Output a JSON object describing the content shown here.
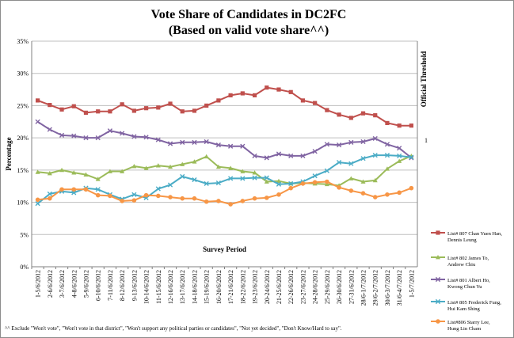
{
  "chart_data": {
    "type": "line",
    "title": "Vote Share of Candidates in DC2FC",
    "subtitle": "(Based on valid vote share^^)",
    "xlabel": "Survey Period",
    "ylabel": "Percentage",
    "y2label": "Official Threshold",
    "y2tick": "1",
    "ylim": [
      0,
      35
    ],
    "yticks": [
      "0%",
      "5%",
      "10%",
      "15%",
      "20%",
      "25%",
      "30%",
      "35%"
    ],
    "grid": true,
    "legend_position": "right",
    "footnote": "^^ Exclude \"Won't vote\", \"Won't vote in that district\", \"Won't support any political parties or candidates\", \"Not yet decided\", \"Don't Know/Hard to say\".",
    "categories": [
      "1-5/6/2012",
      "2-6/6/2012",
      "3-7/6/2012",
      "4-8/6/2012",
      "5-9/6/2012",
      "6-10/6/2012",
      "7-11/6/2012",
      "8-12/6/2012",
      "9-13/6/2012",
      "10-14/6/2012",
      "11-15/6/2012",
      "12-16/6/2012",
      "13-17/6/2012",
      "14-18/6/2012",
      "15-19/6/2012",
      "16-20/6/2012",
      "17-21/6/2012",
      "18-22/6/2012",
      "19-23/6/2012",
      "20-24/6/2012",
      "21-25/6/2012",
      "22-26/6/2012",
      "23-27/6/2012",
      "24-28/6/2012",
      "25-29/6/2012",
      "26-30/6/2012",
      "27-31/6/2012",
      "28/6-1/7/2012",
      "29/6-2/7/2012",
      "30/6-3/7/2012",
      "31/6-4/7/2012",
      "1-5/7/2012"
    ],
    "series": [
      {
        "name": "List# 807 Chan Yuen Han, Dennis Leung",
        "color": "#c0504d",
        "marker": "square",
        "values": [
          25.8,
          25.1,
          24.4,
          24.9,
          23.9,
          24.1,
          24.1,
          25.2,
          24.2,
          24.6,
          24.7,
          25.3,
          24.1,
          24.2,
          25.0,
          25.8,
          26.6,
          26.9,
          26.6,
          27.8,
          27.5,
          27.1,
          25.8,
          25.4,
          24.3,
          23.6,
          23.1,
          23.8,
          23.5,
          22.3,
          21.9,
          21.9
        ]
      },
      {
        "name": "List# 802 James To, Andrew Chiu",
        "color": "#9bbb59",
        "marker": "triangle",
        "values": [
          14.7,
          14.5,
          15.0,
          14.6,
          14.3,
          13.6,
          14.8,
          14.8,
          15.6,
          15.3,
          15.7,
          15.5,
          15.9,
          16.3,
          17.1,
          15.5,
          15.3,
          14.8,
          14.6,
          13.2,
          13.3,
          12.9,
          13.0,
          12.9,
          12.8,
          12.6,
          13.7,
          13.2,
          13.4,
          15.2,
          16.4,
          17.2
        ]
      },
      {
        "name": "List# 801 Albert Ho, Kwong Chun Yu",
        "color": "#8064a2",
        "marker": "x",
        "values": [
          22.5,
          21.3,
          20.4,
          20.3,
          20.0,
          20.0,
          21.1,
          20.7,
          20.2,
          20.1,
          19.7,
          19.1,
          19.3,
          19.3,
          19.4,
          18.9,
          18.7,
          18.7,
          17.2,
          16.9,
          17.5,
          17.2,
          17.2,
          17.9,
          19.0,
          18.9,
          19.3,
          19.4,
          19.9,
          19.0,
          18.4,
          16.9
        ]
      },
      {
        "name": "List# 805 Frederick Fung, Hui Kam Shing",
        "color": "#4bacc6",
        "marker": "x",
        "values": [
          9.8,
          11.3,
          11.7,
          11.5,
          12.2,
          12.0,
          11.2,
          10.5,
          11.2,
          10.7,
          12.1,
          12.7,
          14.0,
          13.5,
          12.9,
          13.0,
          13.7,
          13.7,
          13.8,
          13.8,
          12.8,
          12.9,
          13.2,
          14.1,
          14.9,
          16.2,
          16.0,
          16.8,
          17.3,
          17.3,
          17.2,
          17.0
        ]
      },
      {
        "name": "List#806 Starry Lee, Hung Lin Cham",
        "color": "#f79646",
        "marker": "circle",
        "values": [
          10.4,
          10.6,
          12.0,
          12.0,
          12.0,
          11.1,
          11.0,
          10.2,
          10.3,
          11.1,
          11.0,
          10.8,
          10.6,
          10.6,
          10.1,
          10.2,
          9.7,
          10.2,
          10.6,
          10.7,
          11.2,
          12.2,
          12.9,
          13.1,
          13.2,
          12.3,
          11.8,
          11.4,
          10.8,
          11.2,
          11.5,
          12.2
        ]
      }
    ]
  }
}
